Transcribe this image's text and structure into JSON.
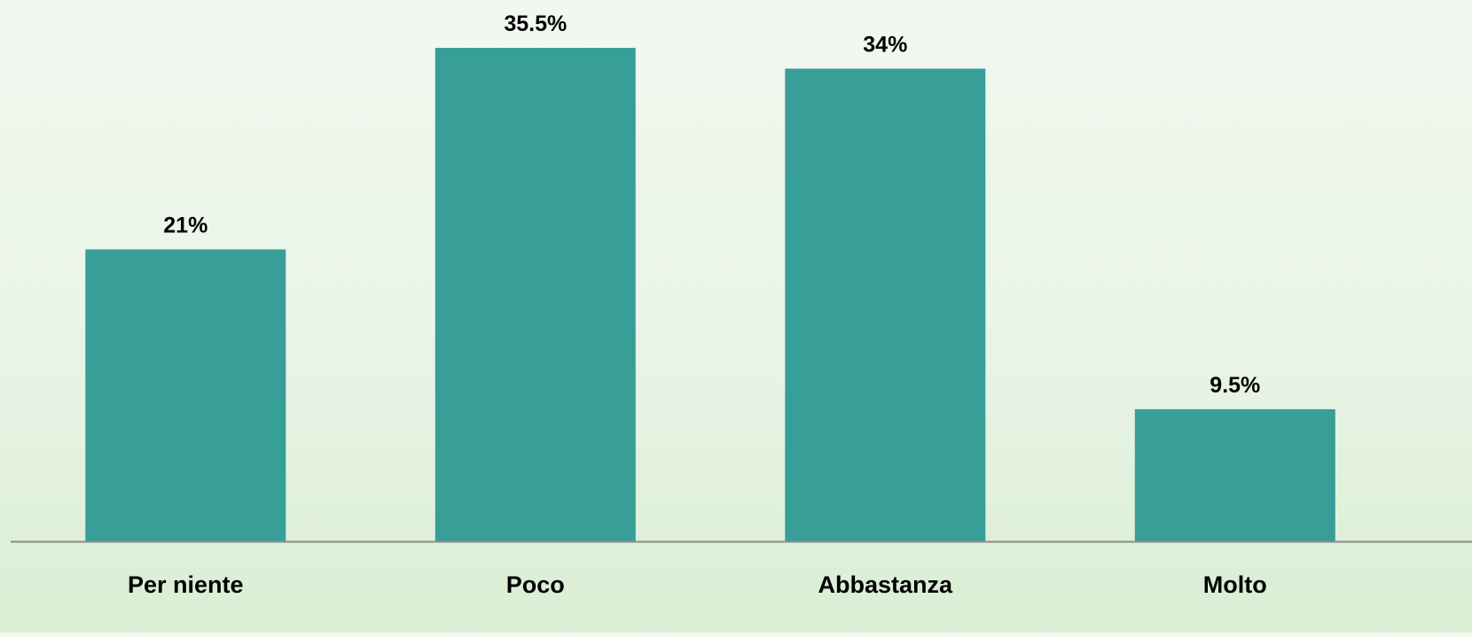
{
  "chart_data": {
    "type": "bar",
    "title": "",
    "xlabel": "",
    "ylabel": "",
    "categories": [
      "Per niente",
      "Poco",
      "Abbastanza",
      "Molto"
    ],
    "values": [
      21,
      35.5,
      34,
      9.5
    ],
    "value_labels": [
      "21%",
      "35.5%",
      "34%",
      "9.5%"
    ],
    "unit": "%",
    "ylim": [
      0,
      35.5
    ],
    "grid": false,
    "legend": "none",
    "colors": {
      "bar": "#379E98",
      "axis": "#8c8c8c",
      "text": "#000000"
    }
  }
}
